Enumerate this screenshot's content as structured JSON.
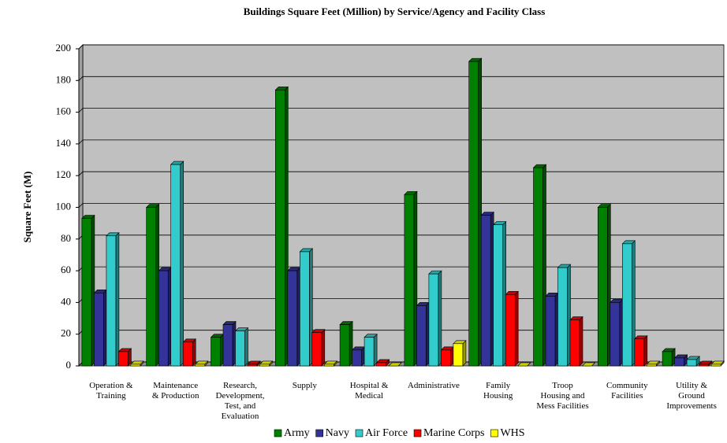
{
  "chart_data": {
    "type": "bar",
    "title": "Buildings Square  Feet (Million) by Service/Agency and Facility Class",
    "y_label": "Square Feet (M)",
    "categories": [
      "Operation &\nTraining",
      "Maintenance\n& Production",
      "Research,\nDevelopment,\nTest, and\nEvaluation",
      "Supply",
      "Hospital &\nMedical",
      "Administrative",
      "Family\nHousing",
      "Troop\nHousing and\nMess Facilities",
      "Community\nFacilities",
      "Utility &\nGround\nImprovements"
    ],
    "series": [
      {
        "name": "Army",
        "color": "#008000",
        "values": [
          93,
          100,
          18,
          174,
          26,
          108,
          192,
          125,
          100,
          9
        ]
      },
      {
        "name": "Navy",
        "color": "#333399",
        "values": [
          46,
          60,
          26,
          60,
          10,
          38,
          95,
          44,
          40,
          5
        ]
      },
      {
        "name": "Air Force",
        "color": "#33cccc",
        "values": [
          82,
          127,
          22,
          72,
          18,
          58,
          89,
          62,
          77,
          4
        ]
      },
      {
        "name": "Marine Corps",
        "color": "#ff0000",
        "values": [
          9,
          15,
          1,
          21,
          2,
          10,
          45,
          29,
          17,
          1
        ]
      },
      {
        "name": "WHS",
        "color": "#ffff00",
        "values": [
          1,
          1,
          1,
          1,
          0,
          14,
          0,
          0,
          1,
          1
        ]
      }
    ],
    "ylim": [
      0,
      200
    ],
    "yticks": [
      0,
      20,
      40,
      60,
      80,
      100,
      120,
      140,
      160,
      180,
      200
    ],
    "grid": true,
    "legend": "bottom"
  }
}
